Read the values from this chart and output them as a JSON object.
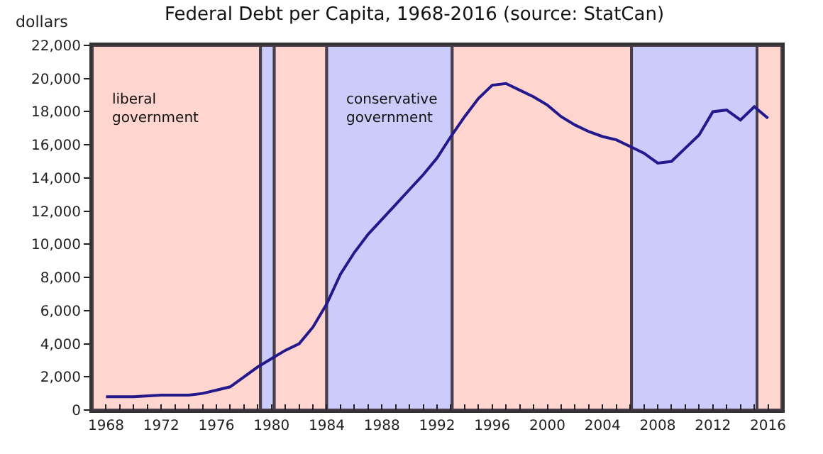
{
  "chart_data": {
    "type": "line",
    "title": "Federal Debt per Capita, 1968-2016 (source: StatCan)",
    "ylabel": "dollars",
    "x": [
      1968,
      1970,
      1972,
      1974,
      1975,
      1976,
      1977,
      1978,
      1979,
      1980,
      1981,
      1982,
      1983,
      1984,
      1985,
      1986,
      1987,
      1988,
      1989,
      1990,
      1991,
      1992,
      1993,
      1994,
      1995,
      1996,
      1997,
      1998,
      1999,
      2000,
      2001,
      2002,
      2003,
      2004,
      2005,
      2006,
      2007,
      2008,
      2009,
      2010,
      2011,
      2012,
      2013,
      2014,
      2015,
      2016
    ],
    "series": [
      {
        "color": "#23188c",
        "values": [
          800,
          800,
          900,
          900,
          1000,
          1200,
          1400,
          2000,
          2600,
          3100,
          3600,
          4000,
          5000,
          6400,
          8200,
          9500,
          10600,
          11500,
          12400,
          13300,
          14200,
          15200,
          16500,
          17700,
          18800,
          19600,
          19700,
          19300,
          18900,
          18400,
          17700,
          17200,
          16800,
          16500,
          16300,
          15900,
          15500,
          14900,
          15000,
          15800,
          16600,
          18000,
          18100,
          17500,
          18300,
          17600
        ]
      }
    ],
    "bands": [
      {
        "axis": "x",
        "from": 1967,
        "to": 1979.2,
        "color": "#ffd5d0",
        "label": "liberal\ngovernment"
      },
      {
        "axis": "x",
        "from": 1979.2,
        "to": 1980.2,
        "color": "#ccccfa"
      },
      {
        "axis": "x",
        "from": 1980.2,
        "to": 1984,
        "color": "#ffd5d0"
      },
      {
        "axis": "x",
        "from": 1984,
        "to": 1993.1,
        "color": "#ccccfa",
        "label": "conservative\ngovernment"
      },
      {
        "axis": "x",
        "from": 1993.1,
        "to": 2006.1,
        "color": "#ffd5d0"
      },
      {
        "axis": "x",
        "from": 2006.1,
        "to": 2015.2,
        "color": "#ccccfa"
      },
      {
        "axis": "x",
        "from": 2015.2,
        "to": 2017,
        "color": "#ffd5d0"
      }
    ],
    "xlim": [
      1967,
      2017
    ],
    "xticks": [
      1968,
      {
        "value": 1969,
        "label": null
      },
      {
        "value": 1970,
        "label": null
      },
      {
        "value": 1971,
        "label": null
      },
      1972,
      {
        "value": 1973,
        "label": null
      },
      {
        "value": 1974,
        "label": null
      },
      {
        "value": 1975,
        "label": null
      },
      1976,
      {
        "value": 1977,
        "label": null
      },
      {
        "value": 1978,
        "label": null
      },
      {
        "value": 1979,
        "label": null
      },
      1980,
      {
        "value": 1981,
        "label": null
      },
      {
        "value": 1982,
        "label": null
      },
      {
        "value": 1983,
        "label": null
      },
      1984,
      {
        "value": 1985,
        "label": null
      },
      {
        "value": 1986,
        "label": null
      },
      {
        "value": 1987,
        "label": null
      },
      1988,
      {
        "value": 1989,
        "label": null
      },
      {
        "value": 1990,
        "label": null
      },
      {
        "value": 1991,
        "label": null
      },
      1992,
      {
        "value": 1993,
        "label": null
      },
      {
        "value": 1994,
        "label": null
      },
      {
        "value": 1995,
        "label": null
      },
      1996,
      {
        "value": 1997,
        "label": null
      },
      {
        "value": 1998,
        "label": null
      },
      {
        "value": 1999,
        "label": null
      },
      2000,
      {
        "value": 2001,
        "label": null
      },
      {
        "value": 2002,
        "label": null
      },
      {
        "value": 2003,
        "label": null
      },
      2004,
      {
        "value": 2005,
        "label": null
      },
      {
        "value": 2006,
        "label": null
      },
      {
        "value": 2007,
        "label": null
      },
      2008,
      {
        "value": 2009,
        "label": null
      },
      {
        "value": 2010,
        "label": null
      },
      {
        "value": 2011,
        "label": null
      },
      2012,
      {
        "value": 2013,
        "label": null
      },
      {
        "value": 2014,
        "label": null
      },
      {
        "value": 2015,
        "label": null
      },
      2016
    ],
    "ylim": [
      0,
      22000
    ],
    "yticks": [
      0,
      {
        "value": 2000,
        "label": "2,000"
      },
      {
        "value": 4000,
        "label": "4,000"
      },
      {
        "value": 6000,
        "label": "6,000"
      },
      {
        "value": 8000,
        "label": "8,000"
      },
      {
        "value": 10000,
        "label": "10,000"
      },
      {
        "value": 12000,
        "label": "12,000"
      },
      {
        "value": 14000,
        "label": "14,000"
      },
      {
        "value": 16000,
        "label": "16,000"
      },
      {
        "value": 18000,
        "label": "18,000"
      },
      {
        "value": 20000,
        "label": "20,000"
      },
      {
        "value": 22000,
        "label": "22,000"
      }
    ],
    "grid": false,
    "marker": "none",
    "line_style": "solid"
  }
}
